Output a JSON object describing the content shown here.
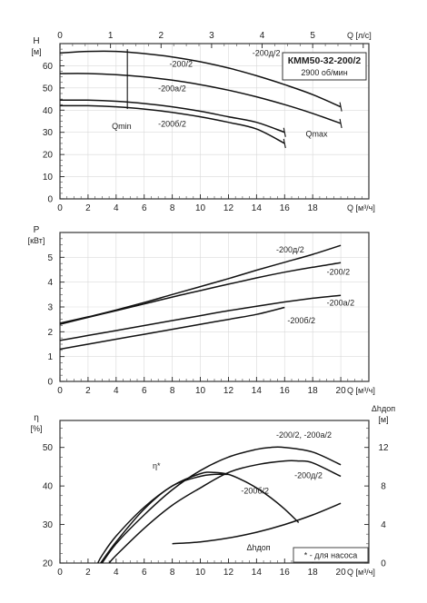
{
  "chart_data": [
    {
      "type": "line",
      "title": "КММ50-32-200/2",
      "subtitle": "2900 об/мин",
      "ylabel": "H",
      "yunit": "[м]",
      "xlabel": "Q [м³/ч]",
      "xlabel_top": "Q [л/с]",
      "xlim": [
        0,
        22
      ],
      "ylim": [
        0,
        70
      ],
      "xticks": [
        0,
        2,
        4,
        6,
        8,
        10,
        12,
        14,
        16,
        18
      ],
      "yticks": [
        0,
        10,
        20,
        30,
        40,
        50,
        60
      ],
      "top_ticks": [
        0,
        1,
        2,
        3,
        4,
        5
      ],
      "top_tick_scale": 3.6,
      "grid": true,
      "series": [
        {
          "name": "-200д/2",
          "x": [
            0,
            2,
            4,
            6,
            8,
            10,
            12,
            14,
            16,
            18,
            20
          ],
          "y": [
            65.8,
            66.5,
            66.5,
            65.5,
            64,
            61.8,
            59,
            55.5,
            51.5,
            47,
            41.5
          ],
          "label_at": [
            13.7,
            64.5
          ]
        },
        {
          "name": "-200/2",
          "x": [
            0,
            2,
            4,
            6,
            8,
            10,
            12,
            14,
            16,
            18,
            20
          ],
          "y": [
            56.5,
            56.5,
            56,
            55,
            53.5,
            51.5,
            49,
            46,
            42.5,
            38.5,
            34
          ],
          "label_at": [
            7.8,
            59.5
          ]
        },
        {
          "name": "-200a/2",
          "x": [
            0,
            2,
            4,
            6,
            8,
            10,
            12,
            14,
            16
          ],
          "y": [
            44.5,
            44.5,
            44,
            43,
            41.5,
            39.5,
            37,
            34.5,
            30
          ],
          "label_at": [
            7,
            48.5
          ]
        },
        {
          "name": "-200б/2",
          "x": [
            0,
            2,
            4,
            6,
            8,
            10,
            12,
            14,
            16
          ],
          "y": [
            42,
            42,
            41.5,
            40.5,
            39,
            37,
            34.5,
            31.5,
            25
          ],
          "label_at": [
            7,
            32.5
          ]
        }
      ],
      "annotations": [
        {
          "text": "Qmin",
          "x": 3.7,
          "y": 31.5
        },
        {
          "text": "Qmax",
          "x": 17.5,
          "y": 28
        }
      ],
      "qmin_line": [
        [
          4.8,
          67.5
        ],
        [
          4.8,
          40.5
        ]
      ]
    },
    {
      "type": "line",
      "ylabel": "P",
      "yunit": "[кВт]",
      "xlabel": "Q [м³/ч]",
      "xlim": [
        0,
        22
      ],
      "ylim": [
        0,
        6
      ],
      "xticks": [
        0,
        2,
        4,
        6,
        8,
        10,
        12,
        14,
        16,
        18,
        20
      ],
      "yticks": [
        0,
        1,
        2,
        3,
        4,
        5
      ],
      "grid": true,
      "series": [
        {
          "name": "-200д/2",
          "x": [
            0,
            2,
            4,
            6,
            8,
            10,
            12,
            14,
            16,
            18,
            20
          ],
          "y": [
            2.35,
            2.6,
            2.88,
            3.18,
            3.5,
            3.82,
            4.14,
            4.48,
            4.8,
            5.12,
            5.48
          ],
          "label_at": [
            15.4,
            5.2
          ]
        },
        {
          "name": "-200/2",
          "x": [
            0,
            2,
            4,
            6,
            8,
            10,
            12,
            14,
            16,
            18,
            20
          ],
          "y": [
            2.3,
            2.58,
            2.85,
            3.12,
            3.4,
            3.66,
            3.92,
            4.17,
            4.4,
            4.6,
            4.78
          ],
          "label_at": [
            19,
            4.3
          ]
        },
        {
          "name": "-200a/2",
          "x": [
            0,
            2,
            4,
            6,
            8,
            10,
            12,
            14,
            16,
            18,
            20
          ],
          "y": [
            1.65,
            1.85,
            2.05,
            2.25,
            2.45,
            2.65,
            2.85,
            3.03,
            3.2,
            3.35,
            3.47
          ],
          "label_at": [
            19,
            3.05
          ]
        },
        {
          "name": "-200б/2",
          "x": [
            0,
            2,
            4,
            6,
            8,
            10,
            12,
            14,
            16
          ],
          "y": [
            1.3,
            1.5,
            1.7,
            1.9,
            2.1,
            2.3,
            2.5,
            2.7,
            2.98
          ],
          "label_at": [
            16.2,
            2.35
          ]
        }
      ]
    },
    {
      "type": "line",
      "ylabel": "η",
      "yunit": "[%]",
      "ylabel_right": "Δhдоп",
      "yunit_right": "[м]",
      "xlabel": "Q [м³/ч]",
      "xlim": [
        0,
        22
      ],
      "ylim": [
        20,
        57
      ],
      "ylim_right": [
        0,
        14.8
      ],
      "xticks": [
        0,
        2,
        4,
        6,
        8,
        10,
        12,
        14,
        16,
        18,
        20
      ],
      "yticks": [
        20,
        30,
        40,
        50
      ],
      "yticks_right": [
        0,
        4,
        8,
        12
      ],
      "grid": false,
      "series": [
        {
          "name": "-200/2, -200a/2",
          "x": [
            3,
            4,
            6,
            8,
            10,
            12,
            14,
            15,
            16,
            18,
            20
          ],
          "y": [
            20,
            25,
            32.5,
            39,
            44,
            47.5,
            49.5,
            50,
            50,
            48.8,
            45.5
          ],
          "label_at": [
            15.4,
            52.5
          ]
        },
        {
          "name": "-200д/2",
          "x": [
            3.5,
            4,
            6,
            8,
            10,
            12,
            14,
            16,
            17,
            18,
            20
          ],
          "y": [
            20,
            22,
            29,
            35,
            39.5,
            43.5,
            45.5,
            46.5,
            46.5,
            46,
            42.5
          ],
          "label_at": [
            16.7,
            42
          ]
        },
        {
          "name": "-200б/2",
          "x": [
            2.7,
            3,
            4,
            6,
            8,
            10,
            11,
            12,
            13,
            14,
            15,
            16,
            17
          ],
          "y": [
            20,
            22,
            27,
            34.5,
            40,
            43.2,
            43.5,
            43,
            41.5,
            39.5,
            37,
            34,
            30.5
          ],
          "label_at": [
            12.9,
            38
          ]
        },
        {
          "name": "η*",
          "x": [
            2.9,
            4,
            6,
            8,
            10,
            11,
            12
          ],
          "y": [
            20,
            25.5,
            34,
            40,
            42.5,
            43,
            43
          ],
          "label_at": [
            6.6,
            44.5
          ]
        },
        {
          "name": "Δhдоп",
          "axis": "right",
          "x": [
            8,
            10,
            12,
            14,
            16,
            18,
            20
          ],
          "y": [
            2,
            2.2,
            2.6,
            3.2,
            4,
            5,
            6.2
          ],
          "label_at": [
            13.3,
            1.3
          ]
        }
      ],
      "legend_note": "* - для насоса"
    }
  ]
}
